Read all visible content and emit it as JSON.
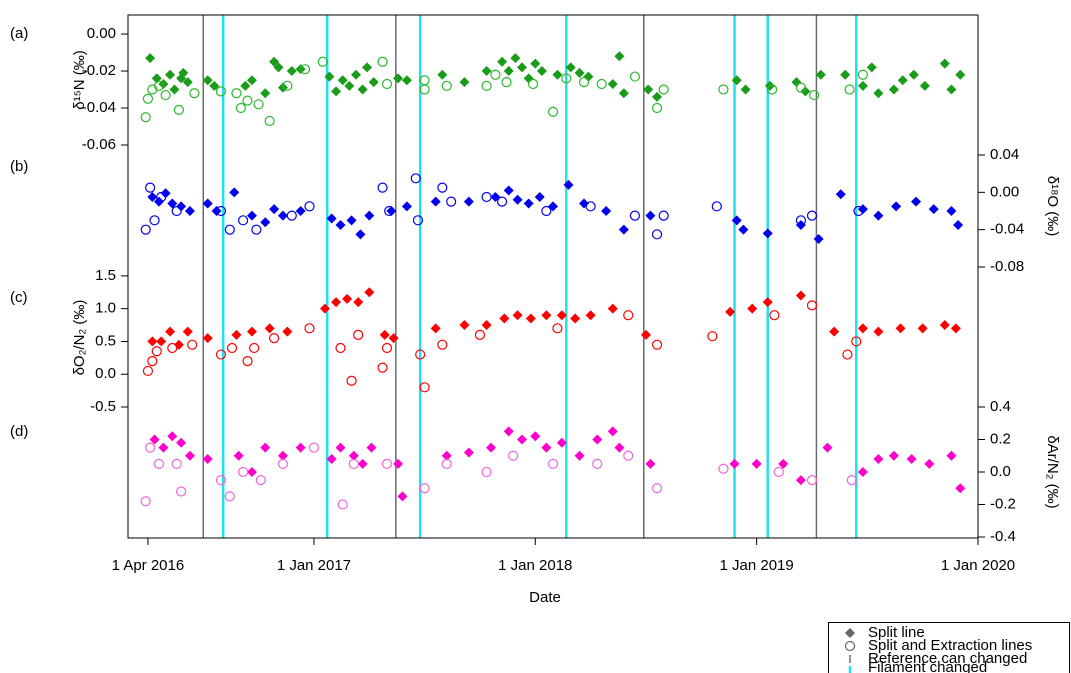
{
  "chart_data": {
    "type": "scatter",
    "xlabel": "Date",
    "xlim": [
      2016.16,
      2020.0
    ],
    "xticks": [
      {
        "value": 2016.25,
        "label": "1 Apr 2016"
      },
      {
        "value": 2017.0,
        "label": "1 Jan 2017"
      },
      {
        "value": 2018.0,
        "label": "1 Jan 2018"
      },
      {
        "value": 2019.0,
        "label": "1 Jan 2019"
      },
      {
        "value": 2020.0,
        "label": "1 Jan 2020"
      }
    ],
    "events": [
      {
        "name": "Reference can changed",
        "color": "#6a6a6a",
        "x": [
          2016.5,
          2017.37,
          2018.49,
          2019.27
        ]
      },
      {
        "name": "Filament changed",
        "color": "#22dff0",
        "x": [
          2016.59,
          2017.06,
          2017.48,
          2018.14,
          2018.9,
          2019.05,
          2019.45
        ]
      }
    ],
    "panels": [
      {
        "label": "(a)",
        "ylabel": "δ¹⁵N (‰)",
        "axis": "left",
        "ylim": [
          -0.06,
          0.0103
        ],
        "yticks": [
          {
            "value": 0,
            "label": "0.00"
          },
          -0.02,
          -0.04,
          -0.06
        ],
        "series": [
          {
            "name": "Split line",
            "marker": "diamond",
            "color": "#1a9b1a",
            "x": [
              2016.26,
              2016.29,
              2016.32,
              2016.35,
              2016.37,
              2016.4,
              2016.41,
              2016.43,
              2016.52,
              2016.55,
              2016.69,
              2016.72,
              2016.78,
              2016.82,
              2016.84,
              2016.86,
              2016.9,
              2016.94,
              2017.07,
              2017.1,
              2017.13,
              2017.16,
              2017.19,
              2017.22,
              2017.24,
              2017.27,
              2017.38,
              2017.42,
              2017.58,
              2017.68,
              2017.78,
              2017.85,
              2017.88,
              2017.91,
              2017.94,
              2017.97,
              2018.0,
              2018.03,
              2018.1,
              2018.16,
              2018.2,
              2018.24,
              2018.35,
              2018.38,
              2018.4,
              2018.51,
              2018.55,
              2018.91,
              2018.95,
              2019.06,
              2019.18,
              2019.22,
              2019.29,
              2019.4,
              2019.48,
              2019.52,
              2019.55,
              2019.62,
              2019.66,
              2019.71,
              2019.76,
              2019.85,
              2019.88,
              2019.92
            ],
            "values": [
              -0.013,
              -0.024,
              -0.027,
              -0.022,
              -0.03,
              -0.024,
              -0.021,
              -0.026,
              -0.025,
              -0.028,
              -0.028,
              -0.025,
              -0.032,
              -0.015,
              -0.018,
              -0.029,
              -0.02,
              -0.019,
              -0.023,
              -0.031,
              -0.025,
              -0.028,
              -0.022,
              -0.03,
              -0.018,
              -0.026,
              -0.024,
              -0.025,
              -0.022,
              -0.026,
              -0.02,
              -0.015,
              -0.02,
              -0.013,
              -0.018,
              -0.024,
              -0.016,
              -0.02,
              -0.022,
              -0.018,
              -0.021,
              -0.023,
              -0.027,
              -0.012,
              -0.032,
              -0.03,
              -0.034,
              -0.025,
              -0.03,
              -0.028,
              -0.026,
              -0.031,
              -0.022,
              -0.022,
              -0.028,
              -0.018,
              -0.032,
              -0.03,
              -0.025,
              -0.022,
              -0.028,
              -0.016,
              -0.03,
              -0.022
            ]
          },
          {
            "name": "Split and Extraction lines",
            "marker": "circle",
            "color": "#2ab82a",
            "x": [
              2016.24,
              2016.25,
              2016.27,
              2016.3,
              2016.33,
              2016.39,
              2016.46,
              2016.58,
              2016.65,
              2016.67,
              2016.7,
              2016.75,
              2016.8,
              2016.88,
              2016.96,
              2017.04,
              2017.31,
              2017.33,
              2017.5,
              2017.5,
              2017.6,
              2017.78,
              2017.82,
              2017.87,
              2017.99,
              2018.08,
              2018.14,
              2018.22,
              2018.3,
              2018.45,
              2018.55,
              2018.58,
              2018.85,
              2019.07,
              2019.2,
              2019.26,
              2019.42,
              2019.48
            ],
            "values": [
              -0.045,
              -0.035,
              -0.03,
              -0.028,
              -0.033,
              -0.041,
              -0.032,
              -0.031,
              -0.032,
              -0.04,
              -0.036,
              -0.038,
              -0.047,
              -0.028,
              -0.019,
              -0.015,
              -0.015,
              -0.027,
              -0.025,
              -0.03,
              -0.028,
              -0.028,
              -0.022,
              -0.026,
              -0.027,
              -0.042,
              -0.024,
              -0.026,
              -0.027,
              -0.023,
              -0.04,
              -0.03,
              -0.03,
              -0.03,
              -0.029,
              -0.033,
              -0.03,
              -0.022
            ]
          }
        ]
      },
      {
        "label": "(b)",
        "ylabel": "δ¹⁸O (‰)",
        "axis": "right",
        "ylim": [
          -0.08,
          0.0507
        ],
        "yticks": [
          0.04,
          {
            "value": 0,
            "label": "0.00"
          },
          -0.04,
          -0.08
        ],
        "series": [
          {
            "marker": "diamond",
            "color": "#0000ee",
            "x": [
              2016.27,
              2016.3,
              2016.33,
              2016.36,
              2016.4,
              2016.44,
              2016.52,
              2016.56,
              2016.64,
              2016.72,
              2016.78,
              2016.82,
              2016.86,
              2016.94,
              2017.08,
              2017.12,
              2017.17,
              2017.21,
              2017.25,
              2017.35,
              2017.42,
              2017.55,
              2017.7,
              2017.82,
              2017.88,
              2017.92,
              2017.97,
              2018.02,
              2018.08,
              2018.15,
              2018.22,
              2018.32,
              2018.4,
              2018.52,
              2018.91,
              2018.94,
              2019.05,
              2019.2,
              2019.28,
              2019.38,
              2019.48,
              2019.55,
              2019.63,
              2019.72,
              2019.8,
              2019.88,
              2019.91
            ],
            "values": [
              -0.005,
              -0.01,
              -0.001,
              -0.012,
              -0.015,
              -0.02,
              -0.012,
              -0.02,
              0.0,
              -0.025,
              -0.032,
              -0.018,
              -0.025,
              -0.02,
              -0.028,
              -0.035,
              -0.03,
              -0.045,
              -0.025,
              -0.02,
              -0.015,
              -0.01,
              -0.01,
              -0.005,
              0.002,
              -0.008,
              -0.012,
              -0.005,
              -0.015,
              0.008,
              -0.012,
              -0.02,
              -0.04,
              -0.025,
              -0.03,
              -0.04,
              -0.044,
              -0.035,
              -0.05,
              -0.002,
              -0.018,
              -0.025,
              -0.015,
              -0.01,
              -0.018,
              -0.02,
              -0.035
            ]
          },
          {
            "marker": "circle",
            "color": "#0000ee",
            "x": [
              2016.24,
              2016.26,
              2016.28,
              2016.31,
              2016.38,
              2016.58,
              2016.62,
              2016.68,
              2016.74,
              2016.9,
              2016.98,
              2017.31,
              2017.34,
              2017.46,
              2017.47,
              2017.58,
              2017.62,
              2017.78,
              2017.85,
              2018.05,
              2018.25,
              2018.45,
              2018.55,
              2018.58,
              2018.82,
              2019.2,
              2019.25,
              2019.46
            ],
            "values": [
              -0.04,
              0.005,
              -0.03,
              -0.005,
              -0.02,
              -0.02,
              -0.04,
              -0.03,
              -0.04,
              -0.025,
              -0.015,
              0.005,
              -0.02,
              0.015,
              -0.03,
              0.005,
              -0.01,
              -0.005,
              -0.01,
              -0.02,
              -0.015,
              -0.025,
              -0.045,
              -0.025,
              -0.015,
              -0.03,
              -0.025,
              -0.02
            ]
          }
        ]
      },
      {
        "label": "(c)",
        "ylabel": "δO₂/N₂ (‰)",
        "axis": "left",
        "ylim": [
          -0.5,
          1.62
        ],
        "yticks": [
          1.5,
          {
            "value": 1,
            "label": "1.0"
          },
          0.5,
          {
            "value": 0,
            "label": "0.0"
          },
          -0.5
        ],
        "series": [
          {
            "marker": "diamond",
            "color": "#ff0000",
            "x": [
              2016.27,
              2016.31,
              2016.35,
              2016.39,
              2016.43,
              2016.52,
              2016.65,
              2016.72,
              2016.8,
              2016.88,
              2017.05,
              2017.1,
              2017.15,
              2017.2,
              2017.25,
              2017.32,
              2017.36,
              2017.55,
              2017.68,
              2017.78,
              2017.86,
              2017.92,
              2017.98,
              2018.05,
              2018.12,
              2018.18,
              2018.25,
              2018.35,
              2018.5,
              2018.88,
              2018.98,
              2019.05,
              2019.2,
              2019.35,
              2019.48,
              2019.55,
              2019.65,
              2019.75,
              2019.85,
              2019.9
            ],
            "values": [
              0.5,
              0.5,
              0.65,
              0.45,
              0.65,
              0.55,
              0.6,
              0.65,
              0.7,
              0.65,
              1.0,
              1.1,
              1.15,
              1.1,
              1.25,
              0.6,
              0.55,
              0.7,
              0.75,
              0.75,
              0.85,
              0.9,
              0.85,
              0.9,
              0.9,
              0.85,
              0.9,
              1.0,
              0.6,
              0.95,
              1.0,
              1.1,
              1.2,
              0.65,
              0.7,
              0.65,
              0.7,
              0.7,
              0.75,
              0.7
            ]
          },
          {
            "marker": "circle",
            "color": "#ff0000",
            "x": [
              2016.25,
              2016.27,
              2016.29,
              2016.36,
              2016.45,
              2016.58,
              2016.63,
              2016.7,
              2016.73,
              2016.82,
              2016.98,
              2017.12,
              2017.17,
              2017.2,
              2017.31,
              2017.33,
              2017.48,
              2017.5,
              2017.58,
              2017.75,
              2018.1,
              2018.42,
              2018.55,
              2018.8,
              2019.08,
              2019.25,
              2019.41,
              2019.45
            ],
            "values": [
              0.05,
              0.2,
              0.35,
              0.4,
              0.45,
              0.3,
              0.4,
              0.2,
              0.4,
              0.55,
              0.7,
              0.4,
              -0.1,
              0.6,
              0.1,
              0.4,
              0.3,
              -0.2,
              0.45,
              0.6,
              0.7,
              0.9,
              0.45,
              0.58,
              0.9,
              1.05,
              0.3,
              0.5
            ]
          }
        ]
      },
      {
        "label": "(d)",
        "ylabel": "δAr/N₂ (‰)",
        "axis": "right",
        "ylim": [
          -0.4,
          0.4
        ],
        "yticks": [
          0.4,
          0.2,
          {
            "value": 0,
            "label": "0.0"
          },
          -0.2,
          -0.4
        ],
        "series": [
          {
            "marker": "diamond",
            "color": "#ff00cc",
            "x": [
              2016.28,
              2016.32,
              2016.36,
              2016.4,
              2016.44,
              2016.52,
              2016.66,
              2016.72,
              2016.78,
              2016.86,
              2016.94,
              2017.08,
              2017.12,
              2017.18,
              2017.22,
              2017.26,
              2017.38,
              2017.4,
              2017.6,
              2017.7,
              2017.8,
              2017.88,
              2017.94,
              2018.0,
              2018.05,
              2018.12,
              2018.2,
              2018.28,
              2018.35,
              2018.38,
              2018.52,
              2018.9,
              2019.0,
              2019.12,
              2019.2,
              2019.32,
              2019.48,
              2019.55,
              2019.62,
              2019.7,
              2019.78,
              2019.88,
              2019.92
            ],
            "values": [
              0.2,
              0.15,
              0.22,
              0.18,
              0.1,
              0.08,
              0.1,
              0.0,
              0.15,
              0.1,
              0.15,
              0.08,
              0.15,
              0.1,
              0.05,
              0.15,
              0.05,
              -0.15,
              0.1,
              0.12,
              0.15,
              0.25,
              0.2,
              0.22,
              0.15,
              0.18,
              0.1,
              0.2,
              0.25,
              0.15,
              0.05,
              0.05,
              0.05,
              0.05,
              -0.05,
              0.15,
              0.0,
              0.08,
              0.1,
              0.08,
              0.05,
              0.1,
              -0.1
            ]
          },
          {
            "marker": "circle",
            "color": "#ee66dd",
            "x": [
              2016.24,
              2016.26,
              2016.3,
              2016.38,
              2016.4,
              2016.58,
              2016.62,
              2016.68,
              2016.76,
              2016.86,
              2017.0,
              2017.13,
              2017.18,
              2017.33,
              2017.5,
              2017.6,
              2017.78,
              2017.9,
              2018.08,
              2018.28,
              2018.42,
              2018.55,
              2018.85,
              2019.1,
              2019.25,
              2019.43
            ],
            "values": [
              -0.18,
              0.15,
              0.05,
              0.05,
              -0.12,
              -0.05,
              -0.15,
              0.0,
              -0.05,
              0.05,
              0.15,
              -0.2,
              0.05,
              0.05,
              -0.1,
              0.05,
              0.0,
              0.1,
              0.05,
              0.05,
              0.1,
              -0.1,
              0.02,
              0.0,
              -0.05,
              -0.05
            ]
          }
        ]
      }
    ]
  }
}
